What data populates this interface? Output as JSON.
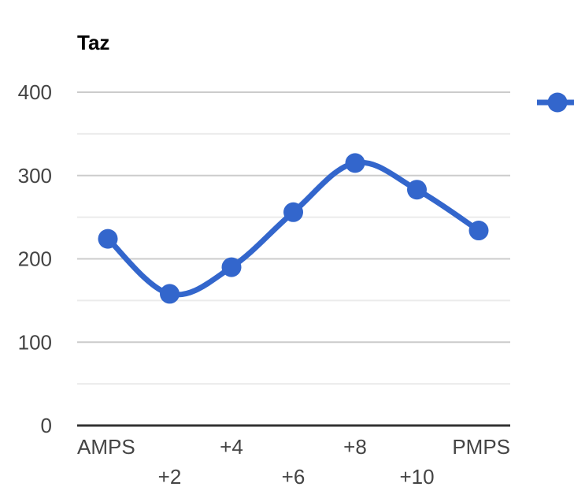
{
  "chart_data": {
    "type": "line",
    "title": "Taz",
    "xlabel": "",
    "ylabel": "",
    "categories": [
      "AMPS",
      "+2",
      "+4",
      "+6",
      "+8",
      "+10",
      "PMPS"
    ],
    "series": [
      {
        "values": [
          224,
          158,
          190,
          256,
          315,
          283,
          234
        ]
      }
    ],
    "ylim": [
      0,
      400
    ],
    "yticks": [
      0,
      100,
      200,
      300,
      400
    ],
    "y_minor_step": 50,
    "grid": true,
    "smooth": true,
    "legend_position": "right",
    "colors": {
      "series": "#3366cc",
      "grid_major": "#cccccc",
      "grid_minor": "#ebebeb",
      "axis": "#333333",
      "text": "#444444"
    }
  }
}
